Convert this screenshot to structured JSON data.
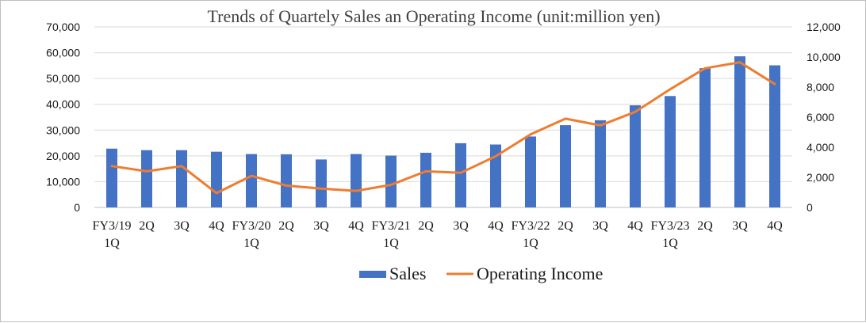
{
  "chart_data": {
    "type": "bar+line",
    "title": "Trends of Quartely Sales an Operating Income (unit:million yen)",
    "categories": [
      [
        "FY3/19",
        "1Q"
      ],
      [
        "2Q"
      ],
      [
        "3Q"
      ],
      [
        "4Q"
      ],
      [
        "FY3/20",
        "1Q"
      ],
      [
        "2Q"
      ],
      [
        "3Q"
      ],
      [
        "4Q"
      ],
      [
        "FY3/21",
        "1Q"
      ],
      [
        "2Q"
      ],
      [
        "3Q"
      ],
      [
        "4Q"
      ],
      [
        "FY3/22",
        "1Q"
      ],
      [
        "2Q"
      ],
      [
        "3Q"
      ],
      [
        "4Q"
      ],
      [
        "FY3/23",
        "1Q"
      ],
      [
        "2Q"
      ],
      [
        "3Q"
      ],
      [
        "4Q"
      ]
    ],
    "series": [
      {
        "name": "Sales",
        "kind": "bar",
        "axis": "left",
        "color": "#4472c4",
        "values": [
          22800,
          22200,
          22200,
          21600,
          20700,
          20600,
          18600,
          20700,
          20100,
          21200,
          24900,
          24400,
          27500,
          31900,
          33800,
          39600,
          43200,
          54000,
          58600,
          55100
        ]
      },
      {
        "name": "Operating Income",
        "kind": "line",
        "axis": "right",
        "color": "#ed7d31",
        "values": [
          2750,
          2400,
          2750,
          950,
          2100,
          1450,
          1250,
          1100,
          1500,
          2400,
          2300,
          3400,
          4850,
          5900,
          5450,
          6350,
          7850,
          9250,
          9650,
          8200
        ]
      }
    ],
    "y_left": {
      "min": 0,
      "max": 70000,
      "step": 10000,
      "ticks": [
        "0",
        "10,000",
        "20,000",
        "30,000",
        "40,000",
        "50,000",
        "60,000",
        "70,000"
      ]
    },
    "y_right": {
      "min": 0,
      "max": 12000,
      "step": 2000,
      "ticks": [
        "0",
        "2,000",
        "4,000",
        "6,000",
        "8,000",
        "10,000",
        "12,000"
      ]
    },
    "grid": true,
    "legend": "bottom-center"
  }
}
